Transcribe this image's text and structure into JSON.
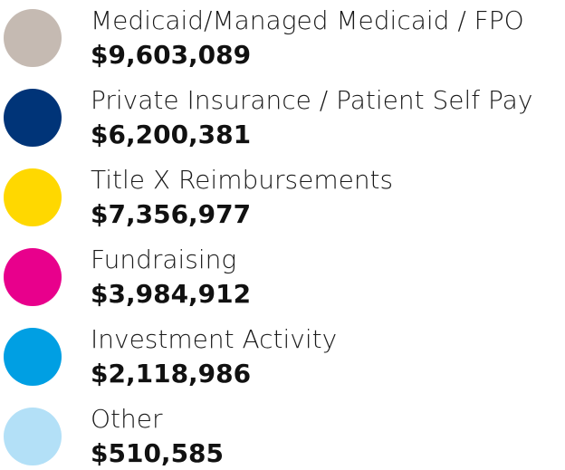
{
  "items": [
    {
      "label": "Medicaid/Managed Medicaid / FPO",
      "amount": "$9,603,089",
      "color": "#c5bab2"
    },
    {
      "label": "Private Insurance / Patient Self Pay",
      "amount": "$6,200,381",
      "color": "#003478"
    },
    {
      "label": "Title X Reimbursements",
      "amount": "$7,356,977",
      "color": "#ffd800"
    },
    {
      "label": "Fundraising",
      "amount": "$3,984,912",
      "color": "#e8008c"
    },
    {
      "label": "Investment Activity",
      "amount": "$2,118,986",
      "color": "#009fe3"
    },
    {
      "label": "Other",
      "amount": "$510,585",
      "color": "#b3e0f7"
    }
  ]
}
